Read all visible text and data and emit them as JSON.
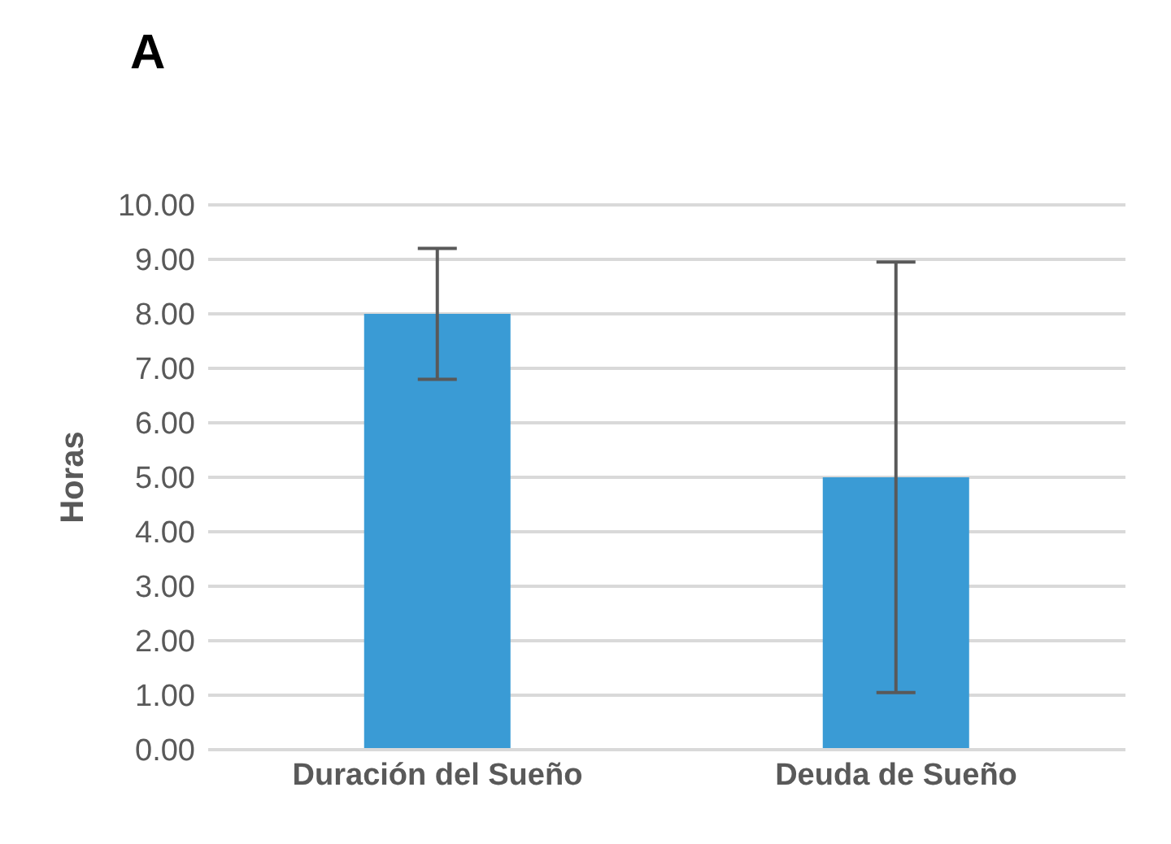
{
  "chart_data": {
    "type": "bar",
    "title": "A",
    "ylabel": "Horas",
    "categories": [
      "Duración del Sueño",
      "Deuda de Sueño"
    ],
    "values": [
      8.0,
      5.0
    ],
    "errors": [
      1.2,
      3.95
    ],
    "color": "#3a9bd5",
    "ylim": [
      0,
      10
    ],
    "yticks": [
      {
        "value": 0,
        "label": "0.00"
      },
      {
        "value": 1,
        "label": "1.00"
      },
      {
        "value": 2,
        "label": "2.00"
      },
      {
        "value": 3,
        "label": "3.00"
      },
      {
        "value": 4,
        "label": "4.00"
      },
      {
        "value": 5,
        "label": "5.00"
      },
      {
        "value": 6,
        "label": "6.00"
      },
      {
        "value": 7,
        "label": "7.00"
      },
      {
        "value": 8,
        "label": "8.00"
      },
      {
        "value": 9,
        "label": "9.00"
      },
      {
        "value": 10,
        "label": "10.00"
      }
    ],
    "grid": "y"
  }
}
